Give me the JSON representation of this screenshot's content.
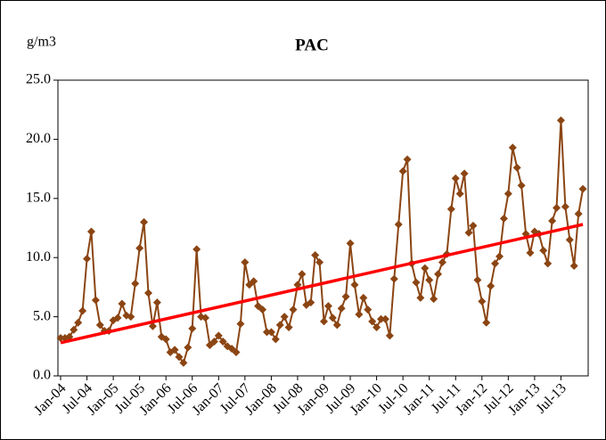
{
  "chart_data": {
    "type": "line",
    "title": "PAC",
    "y_unit": "g/m3",
    "categories": [
      "Jan-04",
      null,
      null,
      null,
      null,
      null,
      "Jul-04",
      null,
      null,
      null,
      null,
      null,
      "Jan-05",
      null,
      null,
      null,
      null,
      null,
      "Jul-05",
      null,
      null,
      null,
      null,
      null,
      "Jan-06",
      null,
      null,
      null,
      null,
      null,
      "Jul-06",
      null,
      null,
      null,
      null,
      null,
      "Jan-07",
      null,
      null,
      null,
      null,
      null,
      "Jul-07",
      null,
      null,
      null,
      null,
      null,
      "Jan-08",
      null,
      null,
      null,
      null,
      null,
      "Jul-08",
      null,
      null,
      null,
      null,
      null,
      "Jan-09",
      null,
      null,
      null,
      null,
      null,
      "Jul-09",
      null,
      null,
      null,
      null,
      null,
      "Jan-10",
      null,
      null,
      null,
      null,
      null,
      "Jul-10",
      null,
      null,
      null,
      null,
      null,
      "Jan-11",
      null,
      null,
      null,
      null,
      null,
      "Jul-11",
      null,
      null,
      null,
      null,
      null,
      "Jan-12",
      null,
      null,
      null,
      null,
      null,
      "Jul-12",
      null,
      null,
      null,
      null,
      null,
      "Jan-13",
      null,
      null,
      null,
      null,
      null,
      "Jul-13",
      null,
      null,
      null,
      null,
      null
    ],
    "series": [
      {
        "color": "#8b4513",
        "values": [
          3.2,
          3.2,
          3.3,
          3.9,
          4.5,
          5.5,
          9.9,
          12.2,
          6.4,
          4.3,
          3.8,
          3.8,
          4.7,
          4.9,
          6.1,
          5.1,
          5.0,
          7.8,
          10.8,
          13.0,
          7.0,
          4.2,
          6.2,
          3.3,
          3.1,
          2.0,
          2.2,
          1.6,
          1.1,
          2.4,
          4.0,
          10.7,
          5.0,
          4.9,
          2.6,
          2.9,
          3.4,
          2.9,
          2.5,
          2.3,
          2.0,
          4.4,
          9.6,
          7.7,
          8.0,
          5.9,
          5.6,
          3.7,
          3.7,
          3.1,
          4.3,
          5.0,
          4.1,
          5.6,
          7.7,
          8.6,
          6.0,
          6.2,
          10.2,
          9.6,
          4.6,
          5.9,
          4.9,
          4.3,
          5.7,
          6.7,
          11.2,
          7.7,
          5.2,
          6.6,
          5.6,
          4.6,
          4.1,
          4.8,
          4.8,
          3.4,
          8.2,
          12.8,
          17.3,
          18.3,
          9.5,
          7.9,
          6.6,
          9.1,
          8.1,
          6.5,
          8.6,
          9.6,
          10.3,
          14.1,
          16.7,
          15.4,
          17.1,
          12.1,
          12.7,
          8.1,
          6.3,
          4.5,
          7.6,
          9.5,
          10.1,
          13.3,
          15.4,
          19.3,
          17.6,
          16.1,
          12.0,
          10.4,
          12.2,
          12.0,
          10.6,
          9.5,
          13.1,
          14.2,
          21.6,
          14.3,
          11.5,
          9.3,
          13.7,
          15.8
        ]
      }
    ],
    "trendline": {
      "color": "#ff0000",
      "start": 2.8,
      "end": 12.8
    },
    "ylim": [
      0,
      25
    ],
    "yticks": [
      {
        "value": 0,
        "label": "0.0"
      },
      {
        "value": 5,
        "label": "5.0"
      },
      {
        "value": 10,
        "label": "10.0"
      },
      {
        "value": 15,
        "label": "15.0"
      },
      {
        "value": 20,
        "label": "20.0"
      },
      {
        "value": 25,
        "label": "25.0"
      }
    ]
  }
}
